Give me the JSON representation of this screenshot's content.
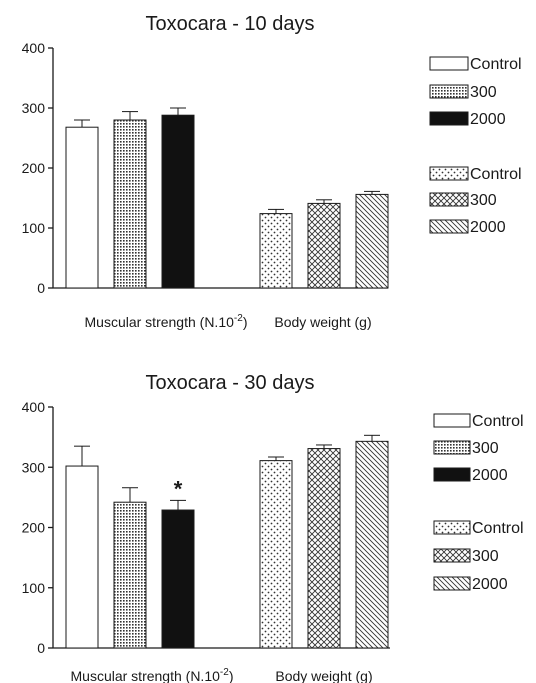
{
  "chart_data": [
    {
      "type": "bar",
      "title": "Toxocara - 10 days",
      "ylim": [
        0,
        400
      ],
      "yticks": [
        "0",
        "100",
        "200",
        "300",
        "400"
      ],
      "groups": [
        {
          "label_main": "Muscular strength (N.10",
          "label_sup": "-2",
          "label_tail": ")"
        },
        {
          "label_main": "Body weight (g)",
          "label_sup": "",
          "label_tail": ""
        }
      ],
      "series": [
        {
          "name": "Control",
          "group": 0,
          "pattern": "open",
          "value": 268,
          "error": 12,
          "annotation": ""
        },
        {
          "name": "300",
          "group": 0,
          "pattern": "fine-dots",
          "value": 280,
          "error": 14,
          "annotation": ""
        },
        {
          "name": "2000",
          "group": 0,
          "pattern": "solid",
          "value": 288,
          "error": 12,
          "annotation": ""
        },
        {
          "name": "Control",
          "group": 1,
          "pattern": "sparse-dots",
          "value": 124,
          "error": 7,
          "annotation": ""
        },
        {
          "name": "300",
          "group": 1,
          "pattern": "crosshatch",
          "value": 141,
          "error": 6,
          "annotation": ""
        },
        {
          "name": "2000",
          "group": 1,
          "pattern": "diagonal",
          "value": 156,
          "error": 5,
          "annotation": ""
        }
      ],
      "grid": false,
      "legend_position": "right"
    },
    {
      "type": "bar",
      "title": "Toxocara - 30 days",
      "ylim": [
        0,
        400
      ],
      "yticks": [
        "0",
        "100",
        "200",
        "300",
        "400"
      ],
      "groups": [
        {
          "label_main": "Muscular strength (N.10",
          "label_sup": "-2",
          "label_tail": ")"
        },
        {
          "label_main": "Body weight (g)",
          "label_sup": "",
          "label_tail": ""
        }
      ],
      "series": [
        {
          "name": "Control",
          "group": 0,
          "pattern": "open",
          "value": 302,
          "error": 33,
          "annotation": ""
        },
        {
          "name": "300",
          "group": 0,
          "pattern": "fine-dots",
          "value": 242,
          "error": 24,
          "annotation": ""
        },
        {
          "name": "2000",
          "group": 0,
          "pattern": "solid",
          "value": 229,
          "error": 16,
          "annotation": "*"
        },
        {
          "name": "Control",
          "group": 1,
          "pattern": "sparse-dots",
          "value": 311,
          "error": 6,
          "annotation": ""
        },
        {
          "name": "300",
          "group": 1,
          "pattern": "crosshatch",
          "value": 331,
          "error": 6,
          "annotation": ""
        },
        {
          "name": "2000",
          "group": 1,
          "pattern": "diagonal",
          "value": 343,
          "error": 10,
          "annotation": ""
        }
      ],
      "grid": false,
      "legend_position": "right"
    }
  ]
}
